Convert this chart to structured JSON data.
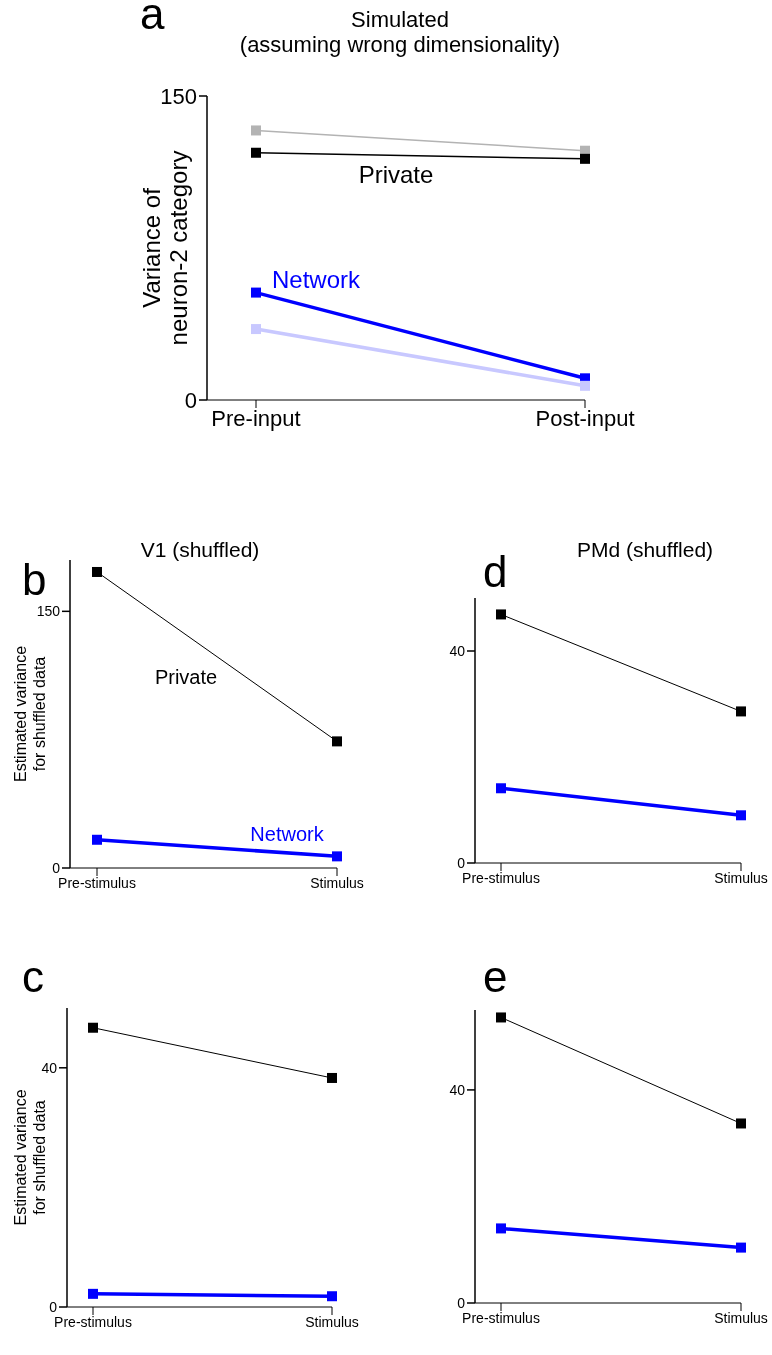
{
  "chart_data": [
    {
      "type": "line",
      "title": "Simulated",
      "subtitle": "(assuming wrong dimensionality)",
      "ylabel": "Variance of\nneuron-2 category",
      "categories": [
        "Pre-input",
        "Post-input"
      ],
      "marker": "square",
      "ylim": [
        0,
        150
      ],
      "yticks": [
        0,
        150
      ],
      "annotations": [
        "a"
      ],
      "series": [
        {
          "color": "#b3b3b3",
          "values": [
            133,
            123
          ]
        },
        {
          "name": "Private",
          "color": "#000000",
          "values": [
            122,
            119
          ]
        },
        {
          "name": "Network",
          "color": "#0000ff",
          "values": [
            53,
            10.7
          ]
        },
        {
          "color": "#c8c8ff",
          "values": [
            35,
            7
          ]
        }
      ]
    },
    {
      "type": "line",
      "title": "V1 (shuffled)",
      "ylabel": "Estimated variance\nfor shuffled data",
      "categories": [
        "Pre-stimulus",
        "Stimulus"
      ],
      "marker": "square",
      "ylim": [
        0,
        180
      ],
      "yticks": [
        0,
        150
      ],
      "annotations": [
        "b"
      ],
      "series": [
        {
          "name": "Private",
          "color": "#000000",
          "values": [
            173,
            74
          ]
        },
        {
          "name": "Network",
          "color": "#0000ff",
          "values": [
            16.5,
            6.8
          ]
        }
      ]
    },
    {
      "type": "line",
      "title": "PMd (shuffled)",
      "categories": [
        "Pre-stimulus",
        "Stimulus"
      ],
      "marker": "square",
      "ylim": [
        0,
        50
      ],
      "yticks": [
        0,
        40
      ],
      "annotations": [
        "d"
      ],
      "series": [
        {
          "color": "#000000",
          "values": [
            46.9,
            28.6
          ]
        },
        {
          "color": "#0000ff",
          "values": [
            14.1,
            9.0
          ]
        }
      ]
    },
    {
      "type": "line",
      "ylabel": "Estimated variance\nfor shuffled data",
      "categories": [
        "Pre-stimulus",
        "Stimulus"
      ],
      "marker": "square",
      "ylim": [
        0,
        50
      ],
      "yticks": [
        0,
        40
      ],
      "annotations": [
        "c"
      ],
      "series": [
        {
          "color": "#000000",
          "values": [
            46.7,
            38.3
          ]
        },
        {
          "color": "#0000ff",
          "values": [
            2.2,
            1.8
          ]
        }
      ]
    },
    {
      "type": "line",
      "categories": [
        "Pre-stimulus",
        "Stimulus"
      ],
      "marker": "square",
      "ylim": [
        0,
        55
      ],
      "yticks": [
        0,
        40
      ],
      "annotations": [
        "e"
      ],
      "series": [
        {
          "color": "#000000",
          "values": [
            53.6,
            33.7
          ]
        },
        {
          "color": "#0000ff",
          "values": [
            14.0,
            10.4
          ]
        }
      ]
    }
  ]
}
